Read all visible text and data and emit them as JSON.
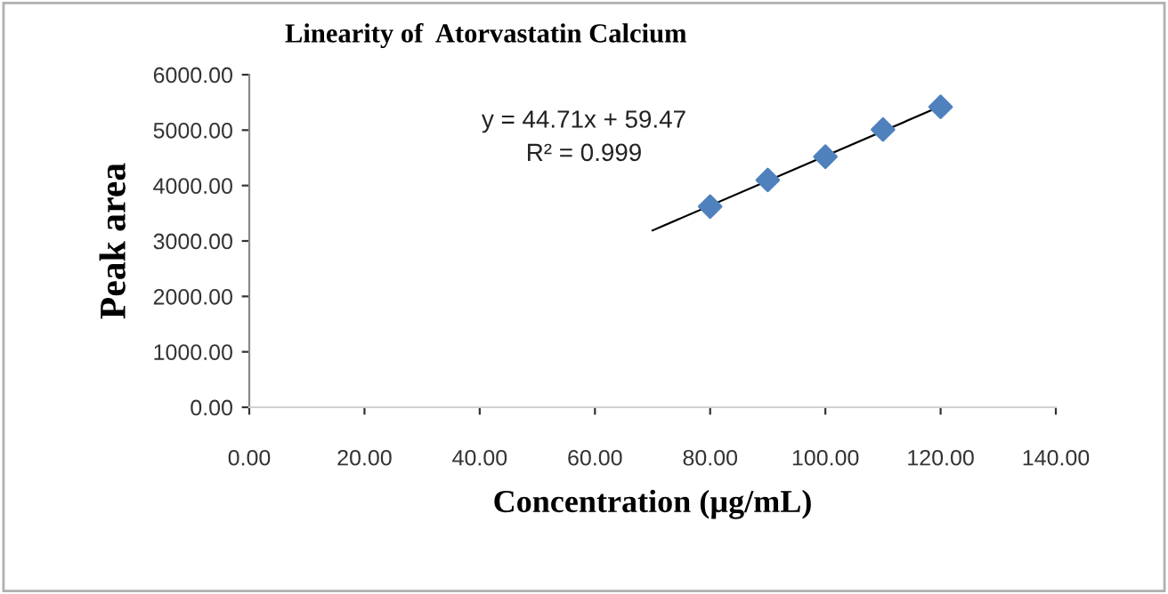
{
  "chart_data": {
    "type": "scatter",
    "title": "Linearity of  Atorvastatin Calcium",
    "xlabel": "Concentration (µg/mL)",
    "ylabel": "Peak area",
    "annotations": [
      "y = 44.71x + 59.47",
      "R² = 0.999"
    ],
    "x": [
      80,
      90,
      100,
      110,
      120
    ],
    "series": [
      {
        "color": "#4f81bd",
        "marker": "diamond",
        "values": [
          3620,
          4100,
          4520,
          5010,
          5420
        ]
      },
      {
        "type": "line",
        "color": "#000000",
        "marker": "none",
        "x": [
          70,
          120
        ],
        "values": [
          3190,
          5430
        ]
      }
    ],
    "xlim": [
      0,
      140
    ],
    "ylim": [
      0,
      6000
    ],
    "xticks": [
      {
        "value": 0,
        "label": "0.00"
      },
      {
        "value": 20,
        "label": "20.00"
      },
      {
        "value": 40,
        "label": "40.00"
      },
      {
        "value": 60,
        "label": "60.00"
      },
      {
        "value": 80,
        "label": "80.00"
      },
      {
        "value": 100,
        "label": "100.00"
      },
      {
        "value": 120,
        "label": "120.00"
      },
      {
        "value": 140,
        "label": "140.00"
      }
    ],
    "yticks": [
      {
        "value": 0,
        "label": "0.00"
      },
      {
        "value": 1000,
        "label": "1000.00"
      },
      {
        "value": 2000,
        "label": "2000.00"
      },
      {
        "value": 3000,
        "label": "3000.00"
      },
      {
        "value": 4000,
        "label": "4000.00"
      },
      {
        "value": 5000,
        "label": "5000.00"
      },
      {
        "value": 6000,
        "label": "6000.00"
      }
    ],
    "grid": false,
    "legend": false
  }
}
